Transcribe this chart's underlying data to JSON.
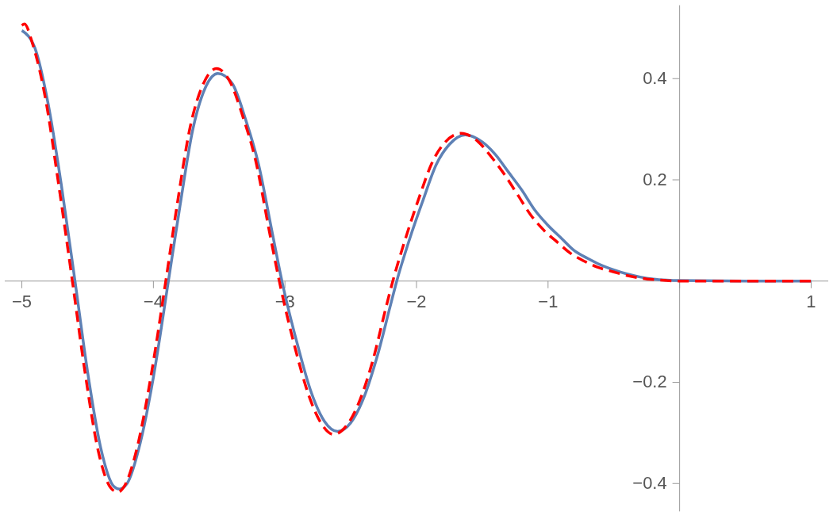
{
  "chart_data": {
    "type": "line",
    "xlim": [
      -5.13,
      1.13
    ],
    "ylim": [
      -0.455,
      0.545
    ],
    "xticks": [
      -5,
      -4,
      -3,
      -2,
      -1,
      {
        "value": 0,
        "label": null
      },
      1
    ],
    "yticks": [
      -0.4,
      -0.2,
      {
        "value": 0,
        "label": null
      },
      0.2,
      0.4
    ],
    "grid": false,
    "series": [
      {
        "color": "#5e81b5",
        "line_style": "solid",
        "x": [
          -5.0,
          -4.9,
          -4.8,
          -4.7,
          -4.596,
          -4.5,
          -4.4,
          -4.3,
          -4.26,
          -4.2,
          -4.1,
          -4.0,
          -3.886,
          -3.8,
          -3.7,
          -3.6,
          -3.51,
          -3.4,
          -3.3,
          -3.2,
          -3.1,
          -3.023,
          -2.9,
          -2.8,
          -2.7,
          -2.6,
          -2.5,
          -2.4,
          -2.3,
          -2.2,
          -2.15,
          -2.05,
          -1.95,
          -1.85,
          -1.75,
          -1.63,
          -1.5,
          -1.4,
          -1.3,
          -1.2,
          -1.1,
          -1.0,
          -0.9,
          -0.8,
          -0.7,
          -0.6,
          -0.5,
          -0.4,
          -0.3,
          -0.2,
          -0.1,
          0,
          0.5,
          1
        ],
        "values": [
          0.495,
          0.46,
          0.35,
          0.19,
          0,
          -0.18,
          -0.33,
          -0.406,
          -0.411,
          -0.4,
          -0.32,
          -0.19,
          0,
          0.145,
          0.3,
          0.385,
          0.41,
          0.39,
          0.32,
          0.23,
          0.1,
          0,
          -0.13,
          -0.22,
          -0.277,
          -0.297,
          -0.28,
          -0.23,
          -0.15,
          -0.05,
          0,
          0.085,
          0.16,
          0.23,
          0.27,
          0.289,
          0.275,
          0.25,
          0.215,
          0.18,
          0.14,
          0.11,
          0.085,
          0.06,
          0.045,
          0.032,
          0.022,
          0.014,
          0.008,
          0.004,
          0.002,
          0.001,
          0,
          0
        ]
      },
      {
        "color": "#ff0000",
        "line_style": "dashed",
        "x": [
          -5.0,
          -4.98,
          -4.92,
          -4.82,
          -4.72,
          -4.616,
          -4.52,
          -4.42,
          -4.32,
          -4.27,
          -4.22,
          -4.12,
          -4.02,
          -3.906,
          -3.82,
          -3.72,
          -3.62,
          -3.52,
          -3.42,
          -3.32,
          -3.22,
          -3.12,
          -3.043,
          -2.92,
          -2.82,
          -2.72,
          -2.63,
          -2.53,
          -2.43,
          -2.33,
          -2.23,
          -2.18,
          -2.08,
          -1.98,
          -1.88,
          -1.78,
          -1.66,
          -1.53,
          -1.43,
          -1.33,
          -1.23,
          -1.13,
          -1.03,
          -0.93,
          -0.83,
          -0.73,
          -0.63,
          -0.5,
          -0.4,
          -0.3,
          -0.2,
          -0.1,
          0,
          0.5,
          1
        ],
        "values": [
          0.505,
          0.508,
          0.47,
          0.36,
          0.19,
          0,
          -0.18,
          -0.335,
          -0.41,
          -0.417,
          -0.405,
          -0.325,
          -0.19,
          0,
          0.15,
          0.305,
          0.39,
          0.42,
          0.395,
          0.325,
          0.235,
          0.1,
          0,
          -0.135,
          -0.225,
          -0.283,
          -0.303,
          -0.285,
          -0.235,
          -0.155,
          -0.05,
          0,
          0.087,
          0.165,
          0.235,
          0.275,
          0.292,
          0.275,
          0.245,
          0.21,
          0.17,
          0.13,
          0.1,
          0.077,
          0.055,
          0.04,
          0.028,
          0.018,
          0.011,
          0.006,
          0.003,
          0.001,
          0,
          0,
          0
        ]
      }
    ]
  }
}
